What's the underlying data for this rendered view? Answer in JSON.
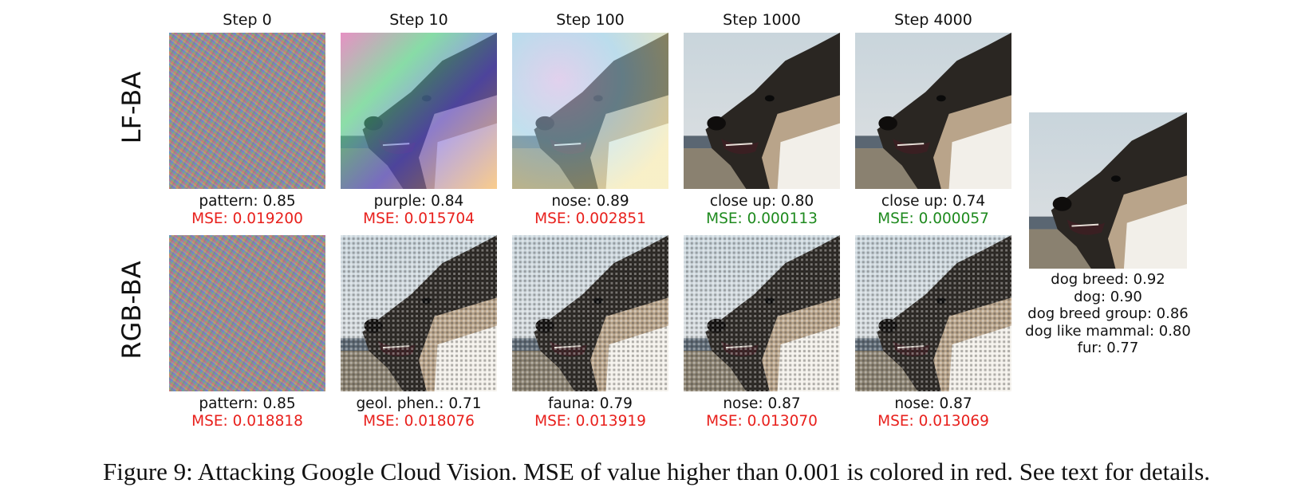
{
  "figure": {
    "columns": [
      "Step 0",
      "Step 10",
      "Step 100",
      "Step 1000",
      "Step 4000"
    ],
    "rows": [
      {
        "label": "LF-BA",
        "cells": [
          {
            "top": "pattern: 0.85",
            "mse": "MSE: 0.019200",
            "mse_color": "#e8201c"
          },
          {
            "top": "purple: 0.84",
            "mse": "MSE: 0.015704",
            "mse_color": "#e8201c"
          },
          {
            "top": "nose: 0.89",
            "mse": "MSE: 0.002851",
            "mse_color": "#e8201c"
          },
          {
            "top": "close up: 0.80",
            "mse": "MSE: 0.000113",
            "mse_color": "#1e8a1e"
          },
          {
            "top": "close up: 0.74",
            "mse": "MSE: 0.000057",
            "mse_color": "#1e8a1e"
          }
        ]
      },
      {
        "label": "RGB-BA",
        "cells": [
          {
            "top": "pattern: 0.85",
            "mse": "MSE: 0.018818",
            "mse_color": "#e8201c"
          },
          {
            "top": "geol. phen.: 0.71",
            "mse": "MSE: 0.018076",
            "mse_color": "#e8201c"
          },
          {
            "top": "fauna: 0.79",
            "mse": "MSE: 0.013919",
            "mse_color": "#e8201c"
          },
          {
            "top": "nose: 0.87",
            "mse": "MSE: 0.013070",
            "mse_color": "#e8201c"
          },
          {
            "top": "nose: 0.87",
            "mse": "MSE: 0.013069",
            "mse_color": "#e8201c"
          }
        ]
      }
    ],
    "original": {
      "labels": [
        "dog breed: 0.92",
        "dog: 0.90",
        "dog breed group: 0.86",
        "dog like mammal: 0.80",
        "fur: 0.77"
      ]
    },
    "caption": "Figure 9: Attacking Google Cloud Vision. MSE of value higher than 0.001 is colored in red. See text for details."
  }
}
